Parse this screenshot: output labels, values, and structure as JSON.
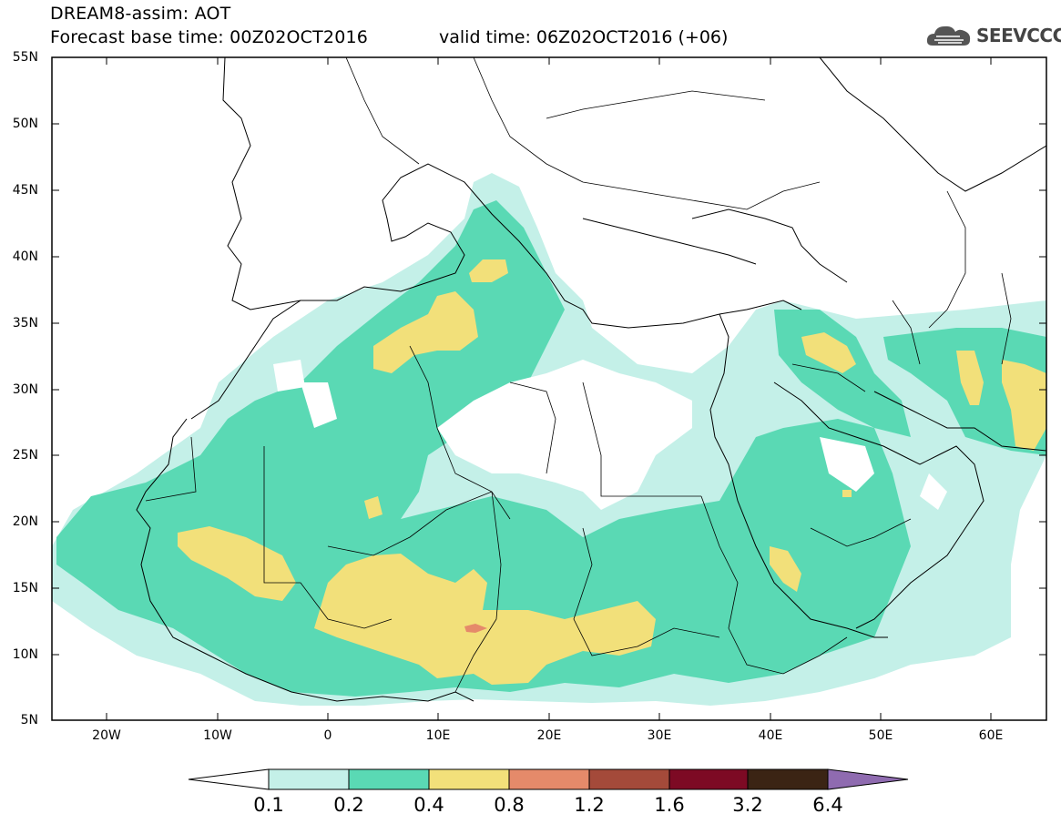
{
  "header": {
    "line1": "DREAM8-assim: AOT",
    "base_time": "Forecast base time: 00Z02OCT2016",
    "valid_time": "valid time: 06Z02OCT2016 (+06)"
  },
  "logo": {
    "text": "SEEVCCC",
    "icon": "cloud-icon"
  },
  "map": {
    "lat_labels": [
      "55N",
      "50N",
      "45N",
      "40N",
      "35N",
      "30N",
      "25N",
      "20N",
      "15N",
      "10N",
      "5N"
    ],
    "lon_labels": [
      "20W",
      "10W",
      "0",
      "10E",
      "20E",
      "30E",
      "40E",
      "50E",
      "60E"
    ],
    "lon_range": [
      -25,
      65
    ],
    "lat_range": [
      5,
      55
    ]
  },
  "colorbar": {
    "labels": [
      "0.1",
      "0.2",
      "0.4",
      "0.8",
      "1.2",
      "1.6",
      "3.2",
      "6.4"
    ],
    "colors": [
      "#c4f0e8",
      "#5ad9b4",
      "#f2e07a",
      "#e58a6a",
      "#a44a3a",
      "#7d0a24",
      "#3b2414",
      "#8f6bb0"
    ]
  }
}
